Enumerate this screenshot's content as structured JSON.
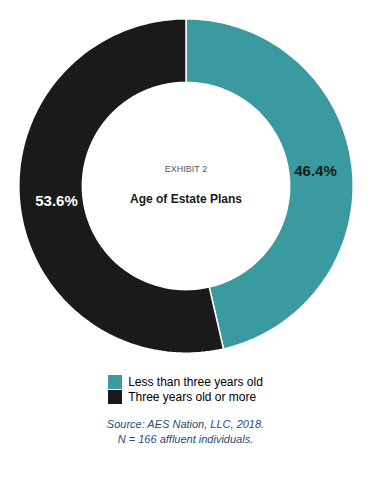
{
  "chart_data": {
    "type": "pie",
    "subtitle": "EXHIBIT 2",
    "title": "Age of Estate Plans",
    "categories": [
      "Less than three years old",
      "Three years old or more"
    ],
    "values": [
      46.4,
      53.6
    ],
    "value_labels": [
      "46.4%",
      "53.6%"
    ],
    "colors": [
      "#3a9aa0",
      "#1a1a1a"
    ],
    "data_labels": true,
    "legend": "bottom",
    "caption": [
      "Source: AES Nation, LLC, 2018.",
      "N = 166 affluent individuals."
    ]
  }
}
